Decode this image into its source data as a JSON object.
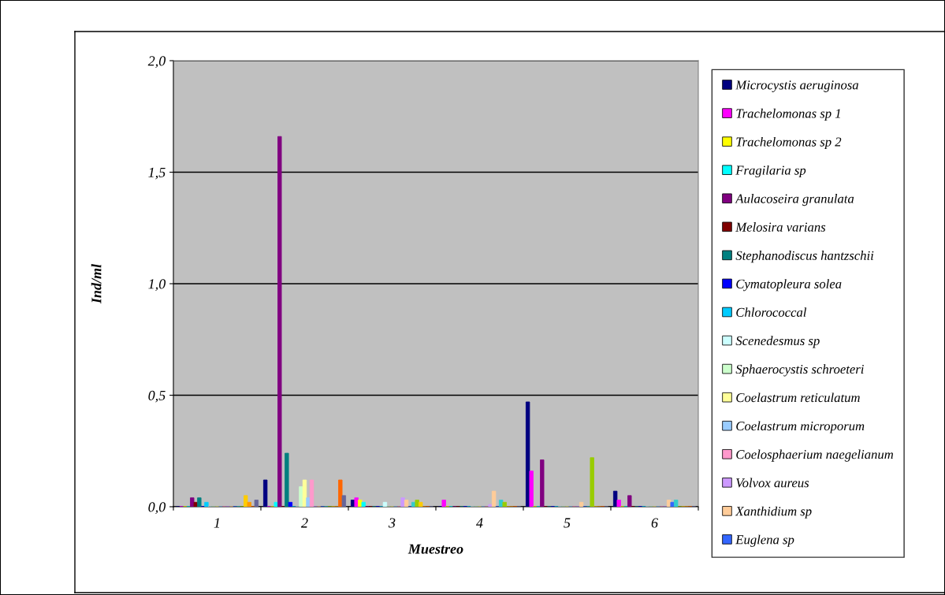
{
  "chart_data": {
    "type": "bar",
    "xlabel": "Muestreo",
    "ylabel": "Ind/ml",
    "categories": [
      "1",
      "2",
      "3",
      "4",
      "5",
      "6"
    ],
    "ylim": [
      0,
      2
    ],
    "yticks": [
      {
        "value": 0,
        "label": "0,0"
      },
      {
        "value": 0.5,
        "label": "0,5"
      },
      {
        "value": 1,
        "label": "1,0"
      },
      {
        "value": 1.5,
        "label": "1,5"
      },
      {
        "value": 2,
        "label": "2,0"
      }
    ],
    "grid": "y",
    "legend": "right",
    "series": [
      {
        "name": "Microcystis aeruginosa",
        "color": "#000080",
        "values": [
          0,
          0.12,
          0.03,
          0,
          0.47,
          0.07
        ]
      },
      {
        "name": "Trachelomonas sp 1",
        "color": "#ff00ff",
        "values": [
          0,
          0,
          0.04,
          0.03,
          0.16,
          0.03
        ]
      },
      {
        "name": "Trachelomonas sp 2",
        "color": "#ffff00",
        "values": [
          0,
          0,
          0.03,
          0,
          0,
          0
        ]
      },
      {
        "name": "Fragilaria sp",
        "color": "#00ffff",
        "values": [
          0,
          0.02,
          0.02,
          0,
          0,
          0
        ]
      },
      {
        "name": "Aulacoseira granulata",
        "color": "#800080",
        "values": [
          0.04,
          1.66,
          0,
          0,
          0.21,
          0.05
        ]
      },
      {
        "name": "Melosira varians",
        "color": "#800000",
        "values": [
          0.02,
          0,
          0,
          0,
          0,
          0
        ]
      },
      {
        "name": "Stephanodiscus hantzschii",
        "color": "#008080",
        "values": [
          0.04,
          0.24,
          0,
          0,
          0,
          0
        ]
      },
      {
        "name": "Cymatopleura solea",
        "color": "#0000ff",
        "values": [
          0,
          0.02,
          0,
          0,
          0,
          0
        ]
      },
      {
        "name": "Chlorococcal",
        "color": "#00ccff",
        "values": [
          0.02,
          0,
          0,
          0,
          0,
          0
        ]
      },
      {
        "name": "Scenedesmus sp",
        "color": "#ccffff",
        "values": [
          0,
          0,
          0.02,
          0,
          0,
          0
        ]
      },
      {
        "name": "Sphaerocystis schroeteri",
        "color": "#ccffcc",
        "values": [
          0,
          0.09,
          0,
          0,
          0,
          0
        ]
      },
      {
        "name": "Coelastrum reticulatum",
        "color": "#ffff99",
        "values": [
          0,
          0.12,
          0,
          0,
          0,
          0
        ]
      },
      {
        "name": "Coelastrum microporum",
        "color": "#99ccff",
        "values": [
          0,
          0.04,
          0,
          0,
          0,
          0
        ]
      },
      {
        "name": "Coelosphaerium naegelianum",
        "color": "#ff99cc",
        "values": [
          0,
          0.12,
          0,
          0,
          0,
          0
        ]
      },
      {
        "name": "Volvox aureus",
        "color": "#cc99ff",
        "values": [
          0,
          0,
          0.04,
          0.01,
          0,
          0
        ]
      },
      {
        "name": "Xanthidium sp",
        "color": "#ffcc99",
        "values": [
          0,
          0,
          0.03,
          0.07,
          0.02,
          0.03
        ]
      },
      {
        "name": "Euglena sp",
        "color": "#3366ff",
        "values": [
          0,
          0,
          0,
          0,
          0,
          0.02
        ]
      },
      {
        "color": "#33cccc",
        "values": [
          0,
          0,
          0.02,
          0.03,
          0,
          0.03
        ]
      },
      {
        "color": "#99cc00",
        "values": [
          0,
          0,
          0.03,
          0.02,
          0.22,
          0
        ]
      },
      {
        "color": "#ffcc00",
        "values": [
          0.05,
          0,
          0.02,
          0,
          0,
          0
        ]
      },
      {
        "color": "#ff9900",
        "values": [
          0.02,
          0,
          0,
          0,
          0,
          0
        ]
      },
      {
        "color": "#ff6600",
        "values": [
          0,
          0.12,
          0,
          0,
          0,
          0
        ]
      },
      {
        "color": "#666699",
        "values": [
          0.03,
          0.05,
          0,
          0,
          0,
          0
        ]
      }
    ]
  }
}
